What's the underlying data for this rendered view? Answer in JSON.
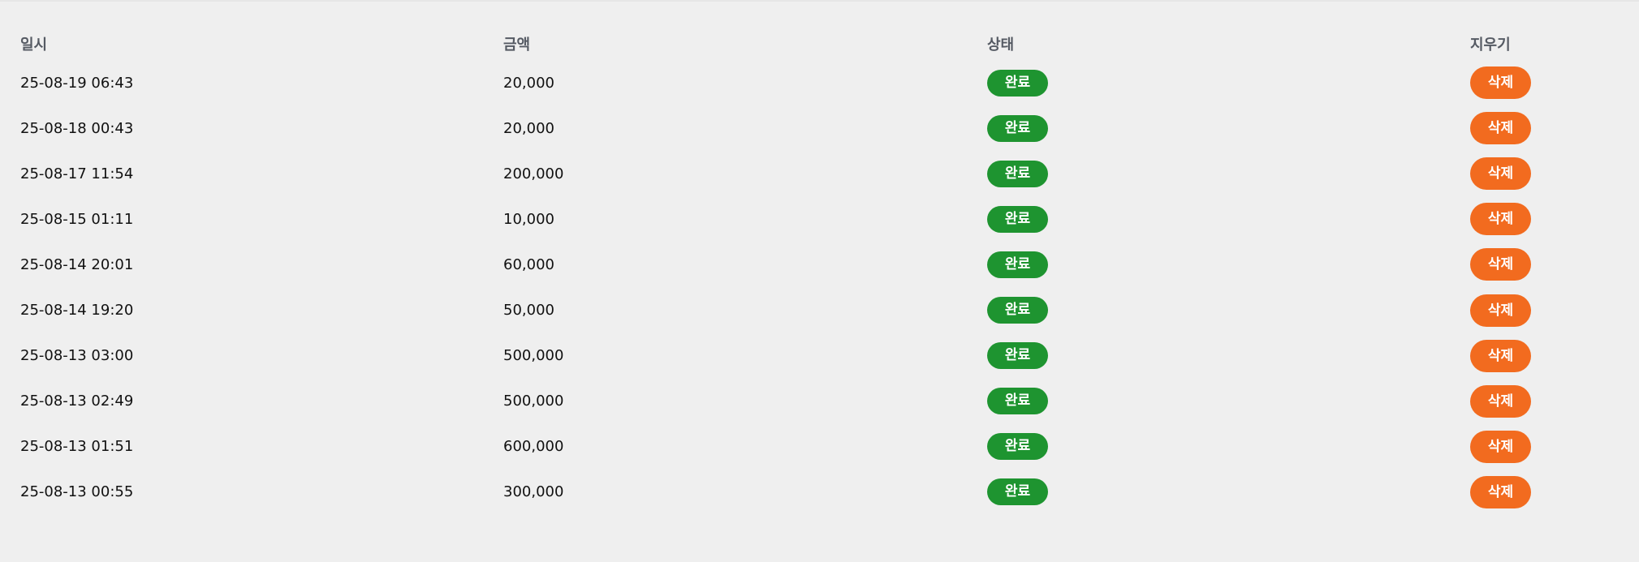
{
  "headers": {
    "datetime": "일시",
    "amount": "금액",
    "status": "상태",
    "delete": "지우기"
  },
  "colors": {
    "status_complete": "#1e9430",
    "delete_button": "#f26b1f",
    "header_text": "#555a63",
    "background": "#efefef"
  },
  "rows": [
    {
      "datetime": "25-08-19 06:43",
      "amount": "20,000",
      "status": "완료",
      "delete": "삭제"
    },
    {
      "datetime": "25-08-18 00:43",
      "amount": "20,000",
      "status": "완료",
      "delete": "삭제"
    },
    {
      "datetime": "25-08-17 11:54",
      "amount": "200,000",
      "status": "완료",
      "delete": "삭제"
    },
    {
      "datetime": "25-08-15 01:11",
      "amount": "10,000",
      "status": "완료",
      "delete": "삭제"
    },
    {
      "datetime": "25-08-14 20:01",
      "amount": "60,000",
      "status": "완료",
      "delete": "삭제"
    },
    {
      "datetime": "25-08-14 19:20",
      "amount": "50,000",
      "status": "완료",
      "delete": "삭제"
    },
    {
      "datetime": "25-08-13 03:00",
      "amount": "500,000",
      "status": "완료",
      "delete": "삭제"
    },
    {
      "datetime": "25-08-13 02:49",
      "amount": "500,000",
      "status": "완료",
      "delete": "삭제"
    },
    {
      "datetime": "25-08-13 01:51",
      "amount": "600,000",
      "status": "완료",
      "delete": "삭제"
    },
    {
      "datetime": "25-08-13 00:55",
      "amount": "300,000",
      "status": "완료",
      "delete": "삭제"
    }
  ]
}
